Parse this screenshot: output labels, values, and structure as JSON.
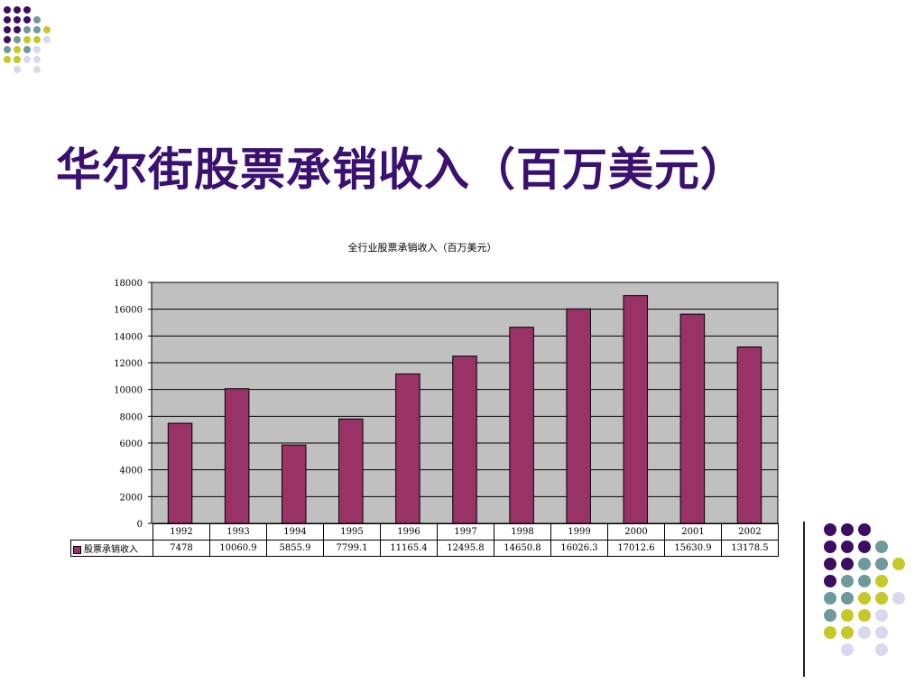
{
  "slide": {
    "title": "华尔街股票承销收入（百万美元）"
  },
  "theme": {
    "title_color": "#3a1070",
    "bar_color": "#993366",
    "plot_bg": "#c0c0c0",
    "dot_colors": [
      "#3b0e63",
      "#6f9a9b",
      "#c4c928",
      "#d9d8ec"
    ]
  },
  "chart_data": {
    "type": "bar",
    "title": "全行业股票承销收入（百万美元）",
    "categories": [
      "1992",
      "1993",
      "1994",
      "1995",
      "1996",
      "1997",
      "1998",
      "1999",
      "2000",
      "2001",
      "2002"
    ],
    "series": [
      {
        "name": "股票承销收入",
        "values": [
          7478,
          10060.9,
          5855.9,
          7799.1,
          11165.4,
          12495.8,
          14650.8,
          16026.3,
          17012.6,
          15630.9,
          13178.5
        ],
        "value_labels": [
          "7478",
          "10060.9",
          "5855.9",
          "7799.1",
          "11165.4",
          "12495.8",
          "14650.8",
          "16026.3",
          "17012.6",
          "15630.9",
          "13178.5"
        ]
      }
    ],
    "ylim": [
      0,
      18000
    ],
    "yticks": [
      "0",
      "2000",
      "4000",
      "6000",
      "8000",
      "10000",
      "12000",
      "14000",
      "16000",
      "18000"
    ],
    "grid": true,
    "legend": "data-table"
  }
}
